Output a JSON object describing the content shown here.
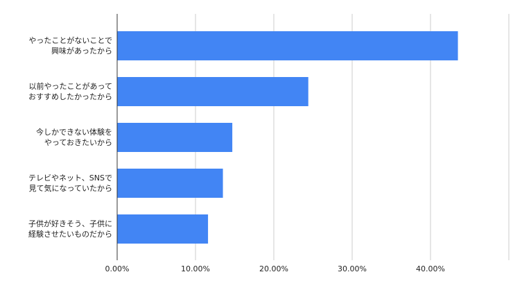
{
  "chart_data": {
    "type": "barh",
    "categories": [
      "やったことがないことで\n興味があったから",
      "以前やったことがあって\nおすすめしたかったから",
      "今しかできない体験を\nやっておきたいから",
      "テレビやネット、SNSで\n見て気になっていたから",
      "子供が好きそう、子供に\n経験させたいものだから"
    ],
    "values": [
      43.5,
      24.4,
      14.7,
      13.5,
      11.6
    ],
    "color": "#4285f4",
    "xlim": [
      0,
      50
    ],
    "xticks": [
      {
        "value": 0,
        "label": "0.00%"
      },
      {
        "value": 10,
        "label": "10.00%"
      },
      {
        "value": 20,
        "label": "20.00%"
      },
      {
        "value": 30,
        "label": "30.00%"
      },
      {
        "value": 40,
        "label": "40.00%"
      }
    ],
    "grid": true
  }
}
